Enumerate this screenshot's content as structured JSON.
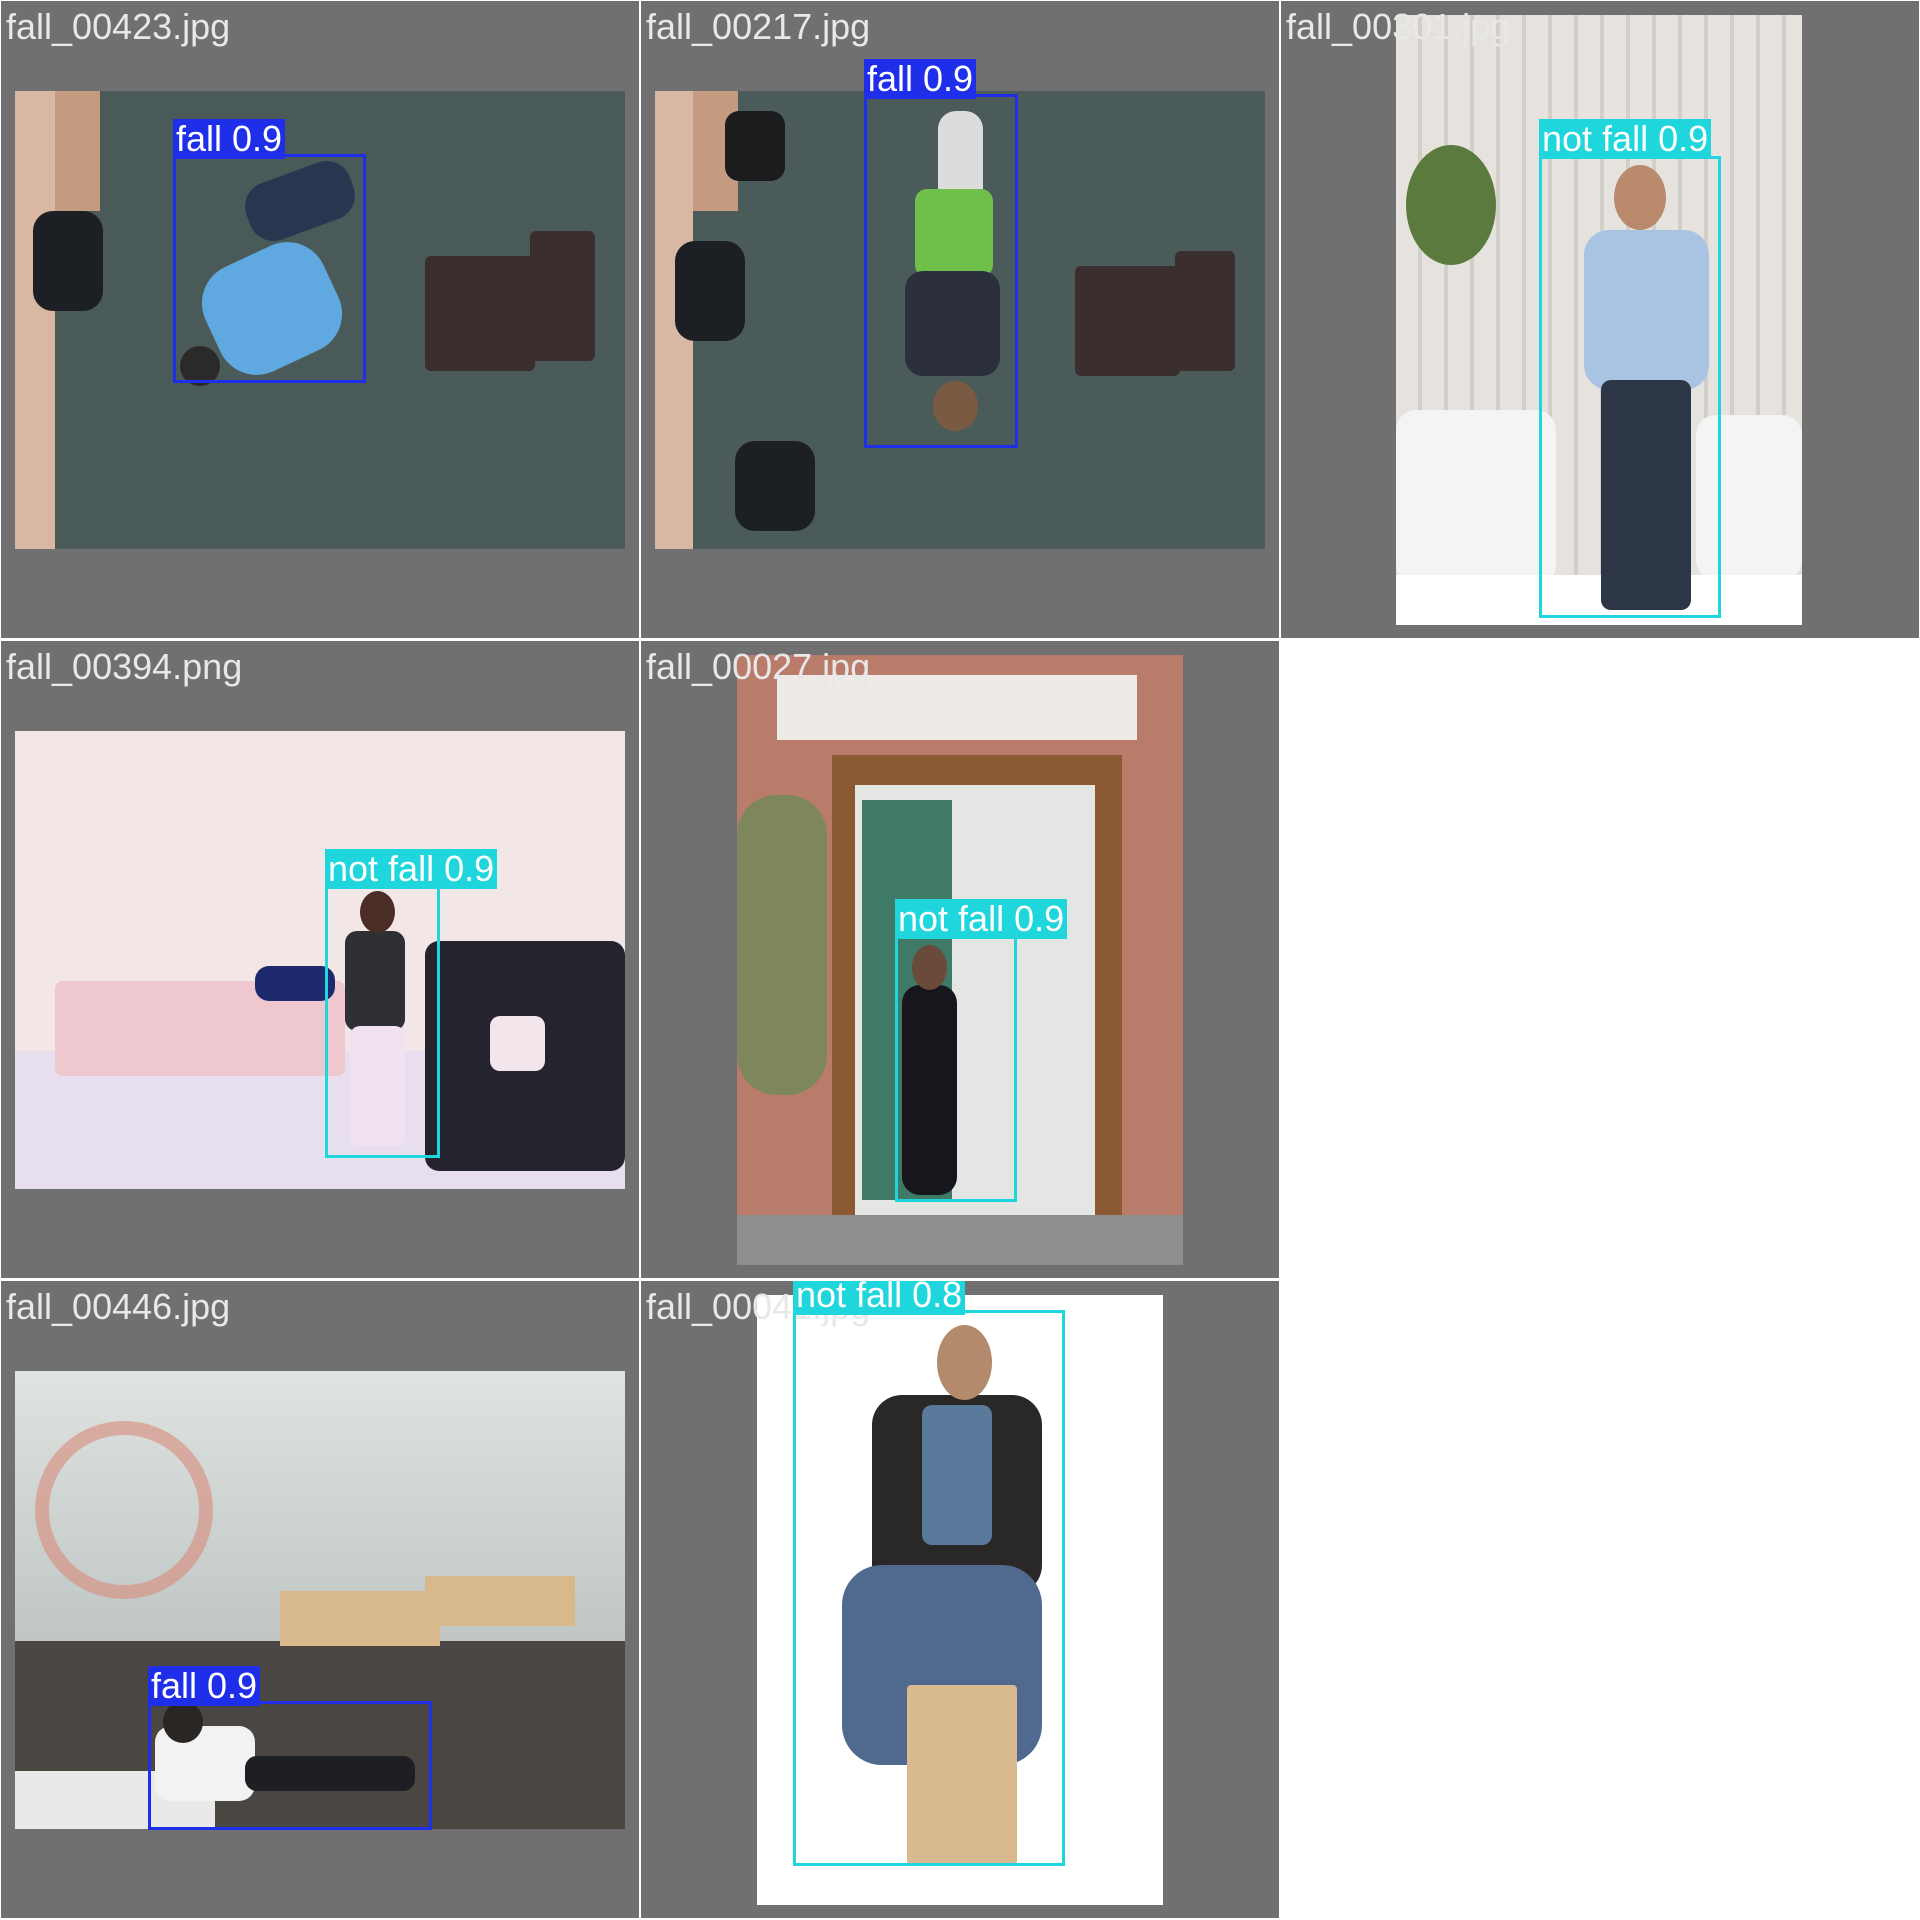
{
  "colors": {
    "tile_bg": "#707070",
    "fall": "#1f2ee8",
    "not_fall": "#1fd6dc",
    "gutter": "#ffffff"
  },
  "tiles": [
    {
      "filename": "fall_00423.jpg",
      "detections": [
        {
          "label": "fall 0.9",
          "class": "fall"
        }
      ]
    },
    {
      "filename": "fall_00217.jpg",
      "detections": [
        {
          "label": "fall 0.9",
          "class": "fall"
        }
      ]
    },
    {
      "filename": "fall_00301.jpg",
      "detections": [
        {
          "label": "not fall 0.9",
          "class": "not fall"
        }
      ]
    },
    {
      "filename": "fall_00394.png",
      "detections": [
        {
          "label": "not fall 0.9",
          "class": "not fall"
        }
      ]
    },
    {
      "filename": "fall_00027.jpg",
      "detections": [
        {
          "label": "not fall 0.9",
          "class": "not fall"
        }
      ]
    },
    {
      "filename": "fall_00446.jpg",
      "detections": [
        {
          "label": "fall 0.9",
          "class": "fall"
        }
      ]
    },
    {
      "filename": "fall_00041.jpg",
      "detections": [
        {
          "label": "not fall 0.8",
          "class": "not fall"
        }
      ]
    }
  ]
}
